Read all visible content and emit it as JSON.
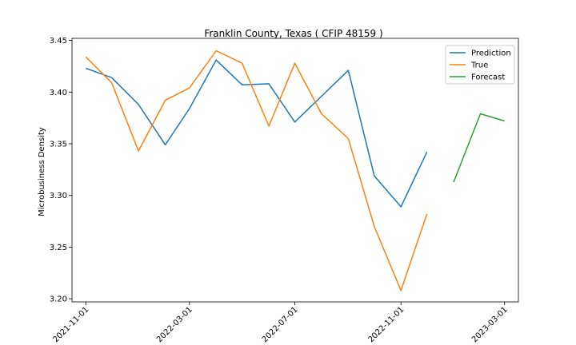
{
  "chart_data": {
    "type": "line",
    "title": "Franklin County, Texas ( CFIP 48159 )",
    "xlabel": "",
    "ylabel": "Microbusiness Density",
    "ylim": [
      3.197,
      3.452
    ],
    "y_ticks": [
      "3.20",
      "3.25",
      "3.30",
      "3.35",
      "3.40",
      "3.45"
    ],
    "x_ticks": [
      "2021-11-01",
      "2022-03-01",
      "2022-07-01",
      "2022-11-01",
      "2023-03-01"
    ],
    "grid": false,
    "legend_position": "top-right",
    "series": [
      {
        "name": "Prediction",
        "color": "#1f77b4",
        "x": [
          "2021-11-01",
          "2021-12-01",
          "2022-01-01",
          "2022-02-01",
          "2022-03-01",
          "2022-04-01",
          "2022-05-01",
          "2022-06-01",
          "2022-07-01",
          "2022-08-01",
          "2022-09-01",
          "2022-10-01",
          "2022-11-01",
          "2022-12-01"
        ],
        "values": [
          3.423,
          3.414,
          3.388,
          3.349,
          3.384,
          3.431,
          3.407,
          3.408,
          3.371,
          3.396,
          3.421,
          3.319,
          3.289,
          3.342
        ]
      },
      {
        "name": "True",
        "color": "#ff7f0e",
        "x": [
          "2021-11-01",
          "2021-12-01",
          "2022-01-01",
          "2022-02-01",
          "2022-03-01",
          "2022-04-01",
          "2022-05-01",
          "2022-06-01",
          "2022-07-01",
          "2022-08-01",
          "2022-09-01",
          "2022-10-01",
          "2022-11-01",
          "2022-12-01"
        ],
        "values": [
          3.434,
          3.409,
          3.343,
          3.392,
          3.404,
          3.44,
          3.428,
          3.367,
          3.428,
          3.379,
          3.355,
          3.27,
          3.208,
          3.282
        ]
      },
      {
        "name": "Forecast",
        "color": "#2ca02c",
        "x": [
          "2023-01-01",
          "2023-02-01",
          "2023-03-01"
        ],
        "values": [
          3.313,
          3.379,
          3.372
        ]
      }
    ]
  }
}
